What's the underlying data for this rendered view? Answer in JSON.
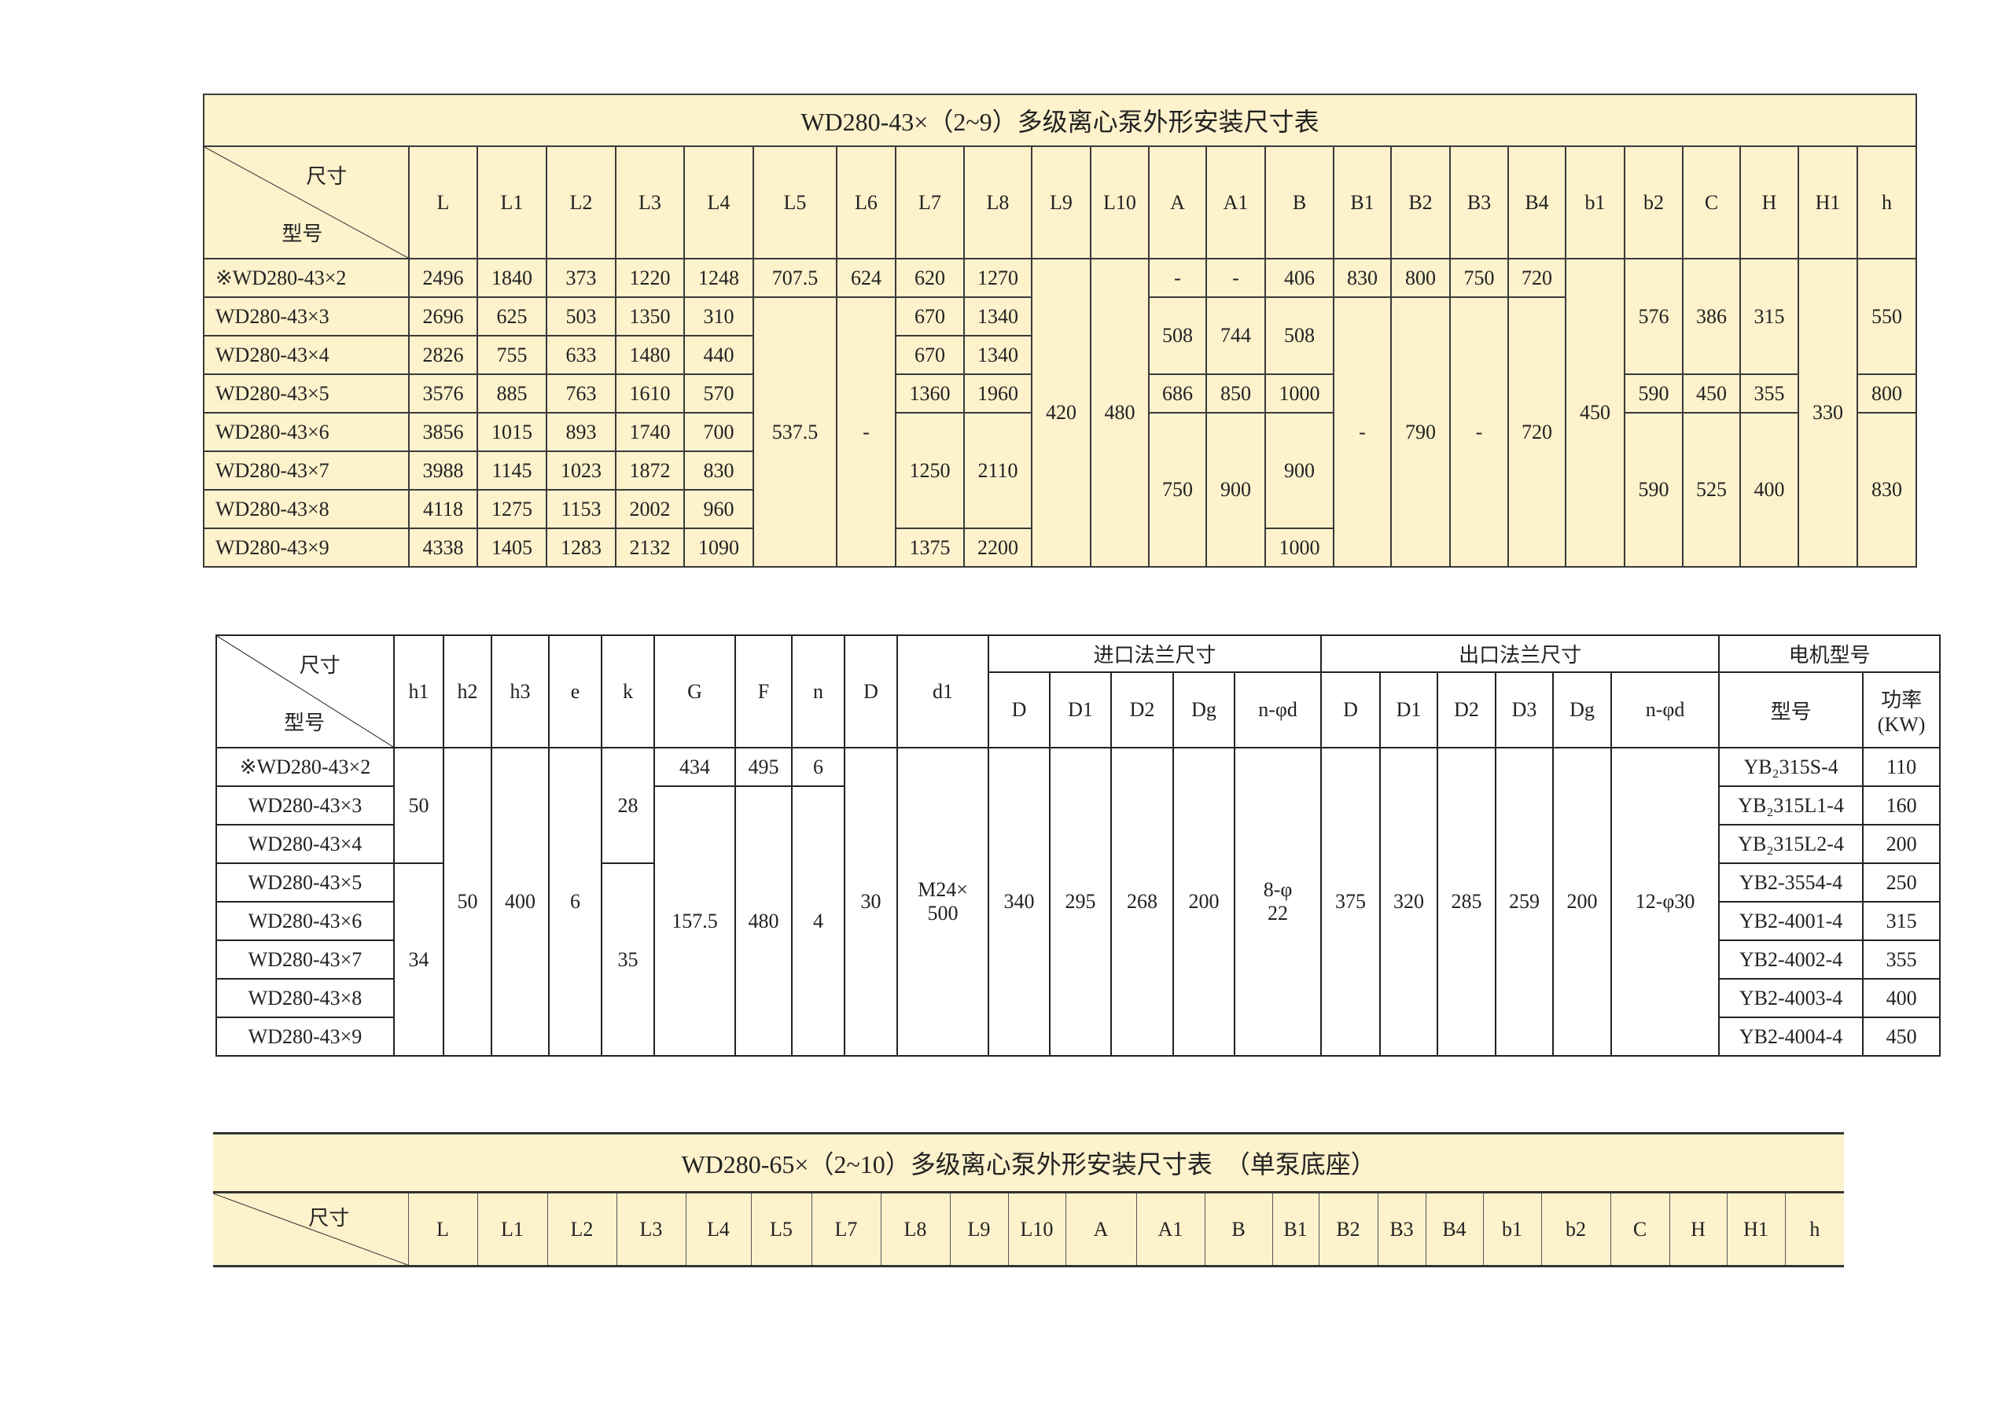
{
  "table1": {
    "title": "WD280-43×（2~9）多级离心泵外形安装尺寸表",
    "corner_top": "尺寸",
    "corner_bottom": "型号",
    "columns": [
      "L",
      "L1",
      "L2",
      "L3",
      "L4",
      "L5",
      "L6",
      "L7",
      "L8",
      "L9",
      "L10",
      "A",
      "A1",
      "B",
      "B1",
      "B2",
      "B3",
      "B4",
      "b1",
      "b2",
      "C",
      "H",
      "H1",
      "h"
    ],
    "rows": [
      {
        "model": "※WD280-43×2",
        "cells": [
          "2496",
          "1840",
          "373",
          "1220",
          "1248",
          "707.5",
          "624",
          "620",
          "1270",
          "420",
          "480",
          "-",
          "-",
          "406",
          "830",
          "800",
          "750",
          "720",
          "450",
          "576",
          "386",
          "315",
          "330",
          "550"
        ]
      },
      {
        "model": "WD280-43×3",
        "cells": [
          "2696",
          "625",
          "503",
          "1350",
          "310",
          "537.5",
          "-",
          "670",
          "1340",
          null,
          null,
          "508",
          "744",
          "508",
          "-",
          "790",
          "-",
          "720",
          null,
          null,
          null,
          null,
          null,
          null
        ]
      },
      {
        "model": "WD280-43×4",
        "cells": [
          "2826",
          "755",
          "633",
          "1480",
          "440",
          null,
          null,
          "670",
          "1340",
          null,
          null,
          null,
          null,
          null,
          null,
          null,
          null,
          null,
          null,
          null,
          null,
          null,
          null,
          null
        ]
      },
      {
        "model": "WD280-43×5",
        "cells": [
          "3576",
          "885",
          "763",
          "1610",
          "570",
          null,
          null,
          "1360",
          "1960",
          null,
          null,
          "686",
          "850",
          "1000",
          null,
          null,
          null,
          null,
          null,
          "590",
          "450",
          "355",
          null,
          "800"
        ]
      },
      {
        "model": "WD280-43×6",
        "cells": [
          "3856",
          "1015",
          "893",
          "1740",
          "700",
          null,
          null,
          "1250",
          "2110",
          null,
          null,
          "750",
          "900",
          "900",
          null,
          null,
          null,
          null,
          null,
          "590",
          "525",
          "400",
          null,
          "830"
        ]
      },
      {
        "model": "WD280-43×7",
        "cells": [
          "3988",
          "1145",
          "1023",
          "1872",
          "830",
          null,
          null,
          null,
          null,
          null,
          null,
          null,
          null,
          null,
          null,
          null,
          null,
          null,
          null,
          null,
          null,
          null,
          null,
          null
        ]
      },
      {
        "model": "WD280-43×8",
        "cells": [
          "4118",
          "1275",
          "1153",
          "2002",
          "960",
          null,
          null,
          null,
          null,
          null,
          null,
          null,
          null,
          null,
          null,
          null,
          null,
          null,
          null,
          null,
          null,
          null,
          null,
          null
        ]
      },
      {
        "model": "WD280-43×9",
        "cells": [
          "4338",
          "1405",
          "1283",
          "2132",
          "1090",
          null,
          null,
          "1375",
          "2200",
          null,
          null,
          null,
          null,
          "1000",
          null,
          null,
          null,
          null,
          null,
          null,
          null,
          null,
          null,
          null
        ]
      }
    ]
  },
  "table2": {
    "corner_top": "尺寸",
    "corner_bottom": "型号",
    "columns": [
      "h1",
      "h2",
      "h3",
      "e",
      "k",
      "G",
      "F",
      "n",
      "D",
      "d1"
    ],
    "inlet_group": "进口法兰尺寸",
    "inlet_columns": [
      "D",
      "D1",
      "D2",
      "Dg",
      "n-φd"
    ],
    "outlet_group": "出口法兰尺寸",
    "outlet_columns": [
      "D",
      "D1",
      "D2",
      "D3",
      "Dg",
      "n-φd"
    ],
    "motor_group": "电机型号",
    "motor_model_label": "型号",
    "motor_power_label": "功率\n(KW)",
    "rows": [
      {
        "model": "※WD280-43×2",
        "cells": [
          "50",
          "50",
          "400",
          "6",
          "28",
          "434",
          "495",
          "6",
          "30",
          "M24×\n500",
          "340",
          "295",
          "268",
          "200",
          "8-φ\n22",
          "375",
          "320",
          "285",
          "259",
          "200",
          "12-φ30",
          "YB₂315S-4",
          "110"
        ]
      },
      {
        "model": "WD280-43×3",
        "cells": [
          null,
          null,
          null,
          null,
          null,
          "157.5",
          "480",
          "4",
          null,
          null,
          null,
          null,
          null,
          null,
          null,
          null,
          null,
          null,
          null,
          null,
          null,
          "YB₂315L1-4",
          "160"
        ]
      },
      {
        "model": "WD280-43×4",
        "cells": [
          null,
          null,
          null,
          null,
          null,
          null,
          null,
          null,
          null,
          null,
          null,
          null,
          null,
          null,
          null,
          null,
          null,
          null,
          null,
          null,
          null,
          "YB₂315L2-4",
          "200"
        ]
      },
      {
        "model": "WD280-43×5",
        "cells": [
          "34",
          null,
          null,
          null,
          "35",
          null,
          null,
          null,
          null,
          null,
          null,
          null,
          null,
          null,
          null,
          null,
          null,
          null,
          null,
          null,
          null,
          "YB2-3554-4",
          "250"
        ]
      },
      {
        "model": "WD280-43×6",
        "cells": [
          null,
          null,
          null,
          null,
          null,
          null,
          null,
          null,
          null,
          null,
          null,
          null,
          null,
          null,
          null,
          null,
          null,
          null,
          null,
          null,
          null,
          "YB2-4001-4",
          "315"
        ]
      },
      {
        "model": "WD280-43×7",
        "cells": [
          null,
          null,
          null,
          null,
          null,
          null,
          null,
          null,
          null,
          null,
          null,
          null,
          null,
          null,
          null,
          null,
          null,
          null,
          null,
          null,
          null,
          "YB2-4002-4",
          "355"
        ]
      },
      {
        "model": "WD280-43×8",
        "cells": [
          null,
          null,
          null,
          null,
          null,
          null,
          null,
          null,
          null,
          null,
          null,
          null,
          null,
          null,
          null,
          null,
          null,
          null,
          null,
          null,
          null,
          "YB2-4003-4",
          "400"
        ]
      },
      {
        "model": "WD280-43×9",
        "cells": [
          null,
          null,
          null,
          null,
          null,
          null,
          null,
          null,
          null,
          null,
          null,
          null,
          null,
          null,
          null,
          null,
          null,
          null,
          null,
          null,
          null,
          "YB2-4004-4",
          "450"
        ]
      }
    ]
  },
  "table3": {
    "title": "WD280-65×（2~10）多级离心泵外形安装尺寸表　（单泵底座）",
    "corner_top": "尺寸",
    "columns": [
      "L",
      "L1",
      "L2",
      "L3",
      "L4",
      "L5",
      "L7",
      "L8",
      "L9",
      "L10",
      "A",
      "A1",
      "B",
      "B1",
      "B2",
      "B3",
      "B4",
      "b1",
      "b2",
      "C",
      "H",
      "H1",
      "h"
    ]
  },
  "colors": {
    "table_fill": "#fdf2cc",
    "line": "#333333"
  }
}
